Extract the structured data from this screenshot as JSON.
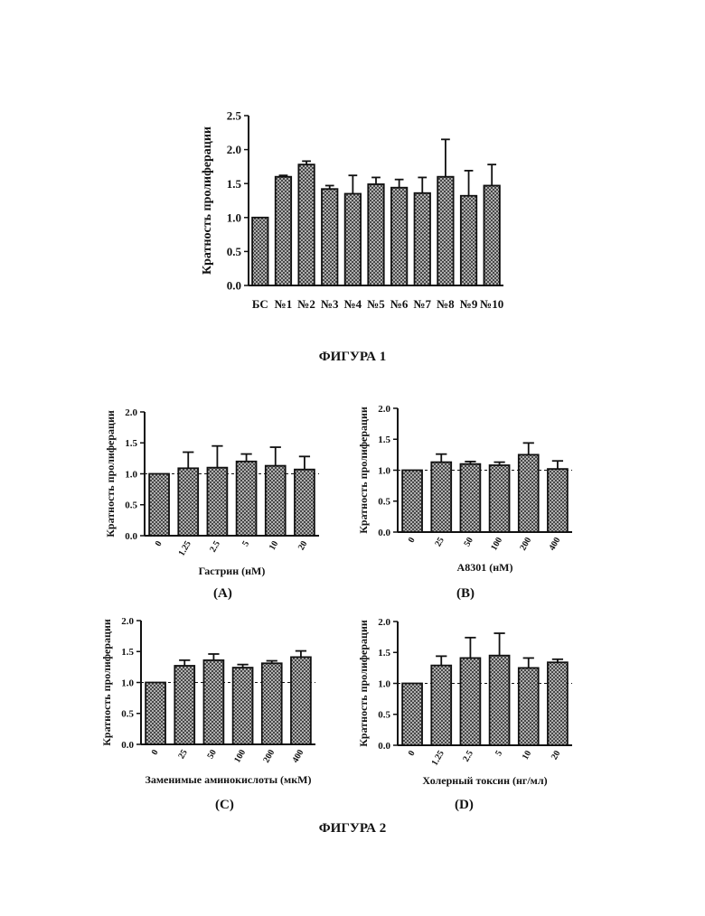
{
  "figure1_label": "ФИГУРА 1",
  "figure2_label": "ФИГУРА 2",
  "panel_labels": [
    "(A)",
    "(B)",
    "(C)",
    "(D)"
  ],
  "chart_data": [
    {
      "id": "fig1",
      "type": "bar",
      "ylabel": "Кратность пролиферации",
      "xlabel": "",
      "categories": [
        "БС",
        "№1",
        "№2",
        "№3",
        "№4",
        "№5",
        "№6",
        "№7",
        "№8",
        "№9",
        "№10"
      ],
      "values": [
        1.0,
        1.6,
        1.78,
        1.42,
        1.35,
        1.49,
        1.44,
        1.36,
        1.6,
        1.32,
        1.47
      ],
      "errors": [
        0.0,
        0.02,
        0.05,
        0.05,
        0.27,
        0.1,
        0.12,
        0.23,
        0.55,
        0.37,
        0.31
      ],
      "ylim": [
        0,
        2.5
      ],
      "yticks": [
        "0.0",
        "0.5",
        "1.0",
        "1.5",
        "2.0",
        "2.5"
      ],
      "reference_line": null,
      "pattern": "crosshatch"
    },
    {
      "id": "A",
      "type": "bar",
      "ylabel": "Кратность пролиферации",
      "xlabel": "Гастрин (нМ)",
      "categories": [
        "0",
        "1.25",
        "2.5",
        "5",
        "10",
        "20"
      ],
      "values": [
        1.0,
        1.09,
        1.1,
        1.2,
        1.13,
        1.07
      ],
      "errors": [
        0.0,
        0.26,
        0.35,
        0.12,
        0.3,
        0.21
      ],
      "ylim": [
        0,
        2.0
      ],
      "yticks": [
        "0.0",
        "0.5",
        "1.0",
        "1.5",
        "2.0"
      ],
      "reference_line": 1.0,
      "pattern": "crosshatch"
    },
    {
      "id": "B",
      "type": "bar",
      "ylabel": "Кратность пролиферации",
      "xlabel": "A8301 (нМ)",
      "categories": [
        "0",
        "25",
        "50",
        "100",
        "200",
        "400"
      ],
      "values": [
        1.0,
        1.13,
        1.1,
        1.08,
        1.25,
        1.02
      ],
      "errors": [
        0.0,
        0.13,
        0.04,
        0.05,
        0.19,
        0.13
      ],
      "ylim": [
        0,
        2.0
      ],
      "yticks": [
        "0.0",
        "0.5",
        "1.0",
        "1.5",
        "2.0"
      ],
      "reference_line": 1.0,
      "pattern": "crosshatch"
    },
    {
      "id": "C",
      "type": "bar",
      "ylabel": "Кратность пролиферации",
      "xlabel": "Заменимые аминокислоты (мкМ)",
      "categories": [
        "0",
        "25",
        "50",
        "100",
        "200",
        "400"
      ],
      "values": [
        1.0,
        1.27,
        1.36,
        1.24,
        1.31,
        1.41
      ],
      "errors": [
        0.0,
        0.09,
        0.1,
        0.05,
        0.04,
        0.1
      ],
      "ylim": [
        0,
        2.0
      ],
      "yticks": [
        "0.0",
        "0.5",
        "1.0",
        "1.5",
        "2.0"
      ],
      "reference_line": 1.0,
      "pattern": "crosshatch"
    },
    {
      "id": "D",
      "type": "bar",
      "ylabel": "Кратность пролиферации",
      "xlabel": "Холерный токсин (нг/мл)",
      "categories": [
        "0",
        "1.25",
        "2.5",
        "5",
        "10",
        "20"
      ],
      "values": [
        1.0,
        1.29,
        1.41,
        1.45,
        1.25,
        1.34
      ],
      "errors": [
        0.0,
        0.15,
        0.33,
        0.36,
        0.16,
        0.05
      ],
      "ylim": [
        0,
        2.0
      ],
      "yticks": [
        "0.0",
        "0.5",
        "1.0",
        "1.5",
        "2.0"
      ],
      "reference_line": 1.0,
      "pattern": "crosshatch"
    }
  ]
}
